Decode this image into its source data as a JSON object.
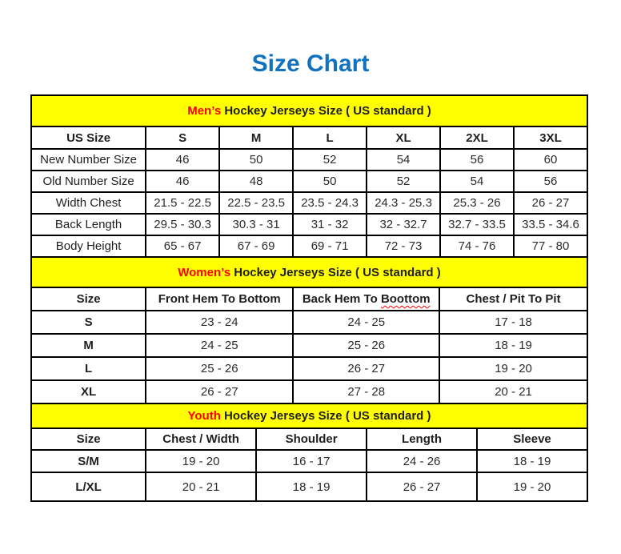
{
  "page": {
    "title": "Size Chart"
  },
  "colors": {
    "title_blue": "#1272BE",
    "band_yellow": "#FFFF00",
    "accent_red": "#FF0000",
    "table_border": "#000000",
    "text_dark": "#1F1F1F"
  },
  "mens": {
    "band": {
      "highlight": "Men’s",
      "rest": " Hockey Jerseys Size ( US standard )"
    },
    "header": [
      "US Size",
      "S",
      "M",
      "L",
      "XL",
      "2XL",
      "3XL"
    ],
    "rows": [
      {
        "label": "New Number Size",
        "values": [
          "46",
          "50",
          "52",
          "54",
          "56",
          "60"
        ]
      },
      {
        "label": "Old Number Size",
        "values": [
          "46",
          "48",
          "50",
          "52",
          "54",
          "56"
        ]
      },
      {
        "label": "Width Chest",
        "values": [
          "21.5 - 22.5",
          "22.5 - 23.5",
          "23.5 - 24.3",
          "24.3 - 25.3",
          "25.3 - 26",
          "26 - 27"
        ]
      },
      {
        "label": "Back Length",
        "values": [
          "29.5 - 30.3",
          "30.3 - 31",
          "31 - 32",
          "32 - 32.7",
          "32.7 - 33.5",
          "33.5 - 34.6"
        ]
      },
      {
        "label": "Body Height",
        "values": [
          "65 - 67",
          "67 - 69",
          "69 - 71",
          "72 - 73",
          "74 - 76",
          "77 - 80"
        ]
      }
    ]
  },
  "womens": {
    "band": {
      "highlight": "Women’s",
      "rest": " Hockey Jerseys Size ( US standard )"
    },
    "header": [
      "Size",
      "Front Hem To Bottom",
      {
        "prefix": "Back Hem To ",
        "misspelled": "Boottom"
      },
      "Chest / Pit To Pit"
    ],
    "rows": [
      {
        "label": "S",
        "values": [
          "23 - 24",
          "24 - 25",
          "17 - 18"
        ]
      },
      {
        "label": "M",
        "values": [
          "24 - 25",
          "25 - 26",
          "18 - 19"
        ]
      },
      {
        "label": "L",
        "values": [
          "25 - 26",
          "26 - 27",
          "19 - 20"
        ]
      },
      {
        "label": "XL",
        "values": [
          "26 - 27",
          "27 - 28",
          "20 - 21"
        ]
      }
    ]
  },
  "youth": {
    "band": {
      "highlight": "Youth",
      "rest": " Hockey Jerseys Size ( US standard )"
    },
    "header": [
      "Size",
      "Chest / Width",
      "Shoulder",
      "Length",
      "Sleeve"
    ],
    "rows": [
      {
        "label": "S/M",
        "values": [
          "19 - 20",
          "16 - 17",
          "24 - 26",
          "18 - 19"
        ]
      },
      {
        "label": "L/XL",
        "values": [
          "20 - 21",
          "18 - 19",
          "26 - 27",
          "19 - 20"
        ]
      }
    ]
  }
}
